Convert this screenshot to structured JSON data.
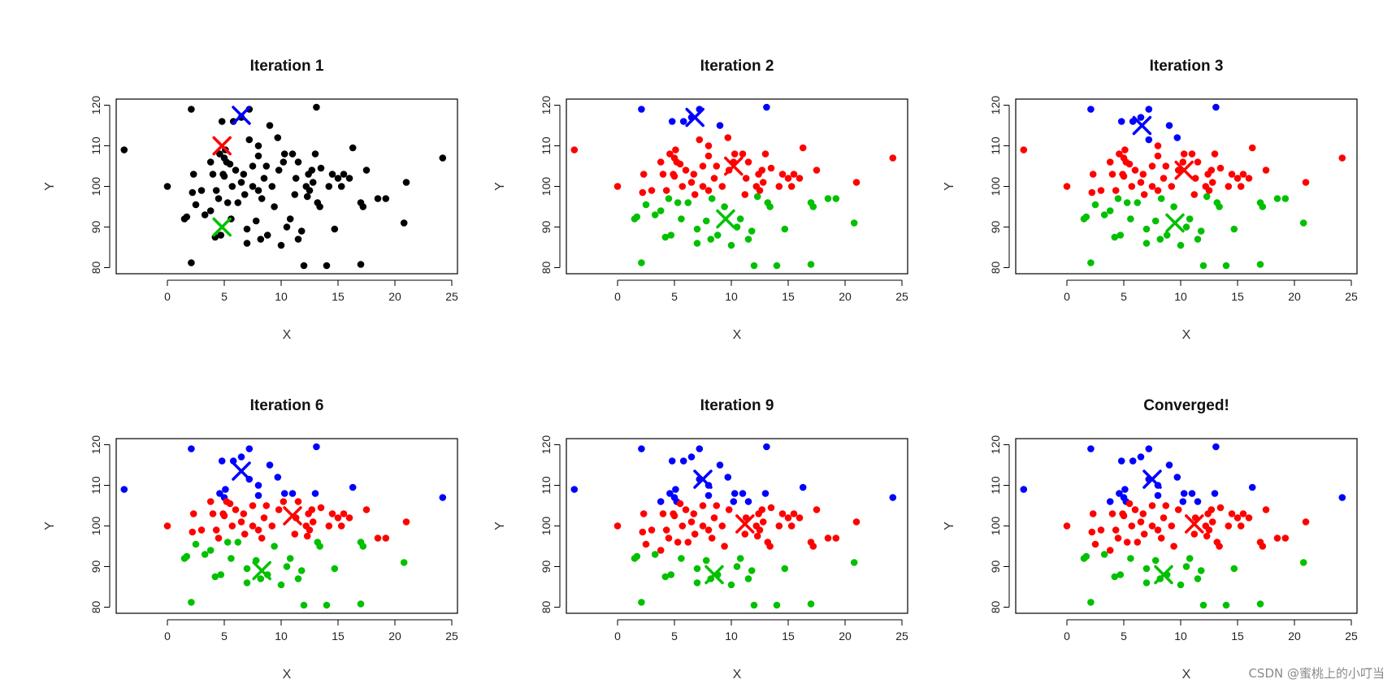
{
  "chart_data": [
    {
      "type": "scatter",
      "title": "Iteration 1",
      "xlabel": "X",
      "ylabel": "Y",
      "xlim": [
        -4.5,
        25.5
      ],
      "ylim": [
        78.5,
        121.5
      ],
      "xticks": [
        0,
        5,
        10,
        15,
        20,
        25
      ],
      "yticks": [
        80,
        90,
        100,
        110,
        120
      ],
      "grid": false,
      "point_color": "#000000",
      "centroids": [
        {
          "x": 6.5,
          "y": 117.5,
          "color": "#0000ff"
        },
        {
          "x": 4.8,
          "y": 110,
          "color": "#ff0000"
        },
        {
          "x": 4.8,
          "y": 90,
          "color": "#00c000"
        }
      ]
    },
    {
      "type": "scatter",
      "title": "Iteration 2",
      "xlabel": "X",
      "ylabel": "Y",
      "xlim": [
        -4.5,
        25.5
      ],
      "ylim": [
        78.5,
        121.5
      ],
      "xticks": [
        0,
        5,
        10,
        15,
        20,
        25
      ],
      "yticks": [
        80,
        90,
        100,
        110,
        120
      ],
      "grid": false,
      "split_lines": [
        114,
        98
      ],
      "centroids": [
        {
          "x": 6.8,
          "y": 117,
          "color": "#0000ff"
        },
        {
          "x": 10.2,
          "y": 105,
          "color": "#ff0000"
        },
        {
          "x": 9.5,
          "y": 92,
          "color": "#00c000"
        }
      ]
    },
    {
      "type": "scatter",
      "title": "Iteration 3",
      "xlabel": "X",
      "ylabel": "Y",
      "xlim": [
        -4.5,
        25.5
      ],
      "ylim": [
        78.5,
        121.5
      ],
      "xticks": [
        0,
        5,
        10,
        15,
        20,
        25
      ],
      "yticks": [
        80,
        90,
        100,
        110,
        120
      ],
      "grid": false,
      "split_lines": [
        111,
        98
      ],
      "centroids": [
        {
          "x": 6.6,
          "y": 115,
          "color": "#0000ff"
        },
        {
          "x": 10.3,
          "y": 104,
          "color": "#ff0000"
        },
        {
          "x": 9.5,
          "y": 91,
          "color": "#00c000"
        }
      ]
    },
    {
      "type": "scatter",
      "title": "Iteration 6",
      "xlabel": "X",
      "ylabel": "Y",
      "xlim": [
        -4.5,
        25.5
      ],
      "ylim": [
        78.5,
        121.5
      ],
      "xticks": [
        0,
        5,
        10,
        15,
        20,
        25
      ],
      "yticks": [
        80,
        90,
        100,
        110,
        120
      ],
      "grid": false,
      "split_lines": [
        107,
        97
      ],
      "centroids": [
        {
          "x": 6.5,
          "y": 113.5,
          "color": "#0000ff"
        },
        {
          "x": 11,
          "y": 102.5,
          "color": "#ff0000"
        },
        {
          "x": 8.3,
          "y": 89,
          "color": "#00c000"
        }
      ]
    },
    {
      "type": "scatter",
      "title": "Iteration 9",
      "xlabel": "X",
      "ylabel": "Y",
      "xlim": [
        -4.5,
        25.5
      ],
      "ylim": [
        78.5,
        121.5
      ],
      "xticks": [
        0,
        5,
        10,
        15,
        20,
        25
      ],
      "yticks": [
        80,
        90,
        100,
        110,
        120
      ],
      "grid": false,
      "split_lines": [
        106,
        94
      ],
      "centroids": [
        {
          "x": 7.5,
          "y": 111.5,
          "color": "#0000ff"
        },
        {
          "x": 11.2,
          "y": 100.5,
          "color": "#ff0000"
        },
        {
          "x": 8.5,
          "y": 88,
          "color": "#00c000"
        }
      ]
    },
    {
      "type": "scatter",
      "title": "Converged!",
      "xlabel": "X",
      "ylabel": "Y",
      "xlim": [
        -4.5,
        25.5
      ],
      "ylim": [
        78.5,
        121.5
      ],
      "xticks": [
        0,
        5,
        10,
        15,
        20,
        25
      ],
      "yticks": [
        80,
        90,
        100,
        110,
        120
      ],
      "grid": false,
      "split_lines": [
        106,
        94
      ],
      "centroids": [
        {
          "x": 7.5,
          "y": 111.5,
          "color": "#0000ff"
        },
        {
          "x": 11.2,
          "y": 100.5,
          "color": "#ff0000"
        },
        {
          "x": 8.5,
          "y": 88,
          "color": "#00c000"
        }
      ]
    }
  ],
  "points": [
    [
      -3.8,
      109
    ],
    [
      0,
      100
    ],
    [
      1.5,
      92
    ],
    [
      1.7,
      92.5
    ],
    [
      2.1,
      81.2
    ],
    [
      2.1,
      119
    ],
    [
      2.2,
      98.5
    ],
    [
      2.3,
      103
    ],
    [
      2.5,
      95.5
    ],
    [
      3,
      99
    ],
    [
      3.3,
      93
    ],
    [
      3.8,
      94
    ],
    [
      3.8,
      106
    ],
    [
      4,
      103
    ],
    [
      4.2,
      87.5
    ],
    [
      4.3,
      99
    ],
    [
      4.5,
      97
    ],
    [
      4.6,
      108
    ],
    [
      4.7,
      88
    ],
    [
      4.8,
      116
    ],
    [
      4.9,
      103
    ],
    [
      5,
      102.5
    ],
    [
      5,
      107
    ],
    [
      5.1,
      109
    ],
    [
      5.2,
      106
    ],
    [
      5.3,
      96
    ],
    [
      5.5,
      105.5
    ],
    [
      5.6,
      92
    ],
    [
      5.7,
      100
    ],
    [
      5.8,
      116
    ],
    [
      6,
      104
    ],
    [
      6.2,
      96
    ],
    [
      6.5,
      117
    ],
    [
      6.5,
      101
    ],
    [
      6.7,
      103
    ],
    [
      6.8,
      98
    ],
    [
      7,
      86
    ],
    [
      7,
      89.5
    ],
    [
      7.2,
      111.5
    ],
    [
      7.2,
      119
    ],
    [
      7.5,
      100
    ],
    [
      7.5,
      105
    ],
    [
      7.8,
      91.5
    ],
    [
      8,
      99
    ],
    [
      8,
      107.5
    ],
    [
      8,
      110
    ],
    [
      8.2,
      87
    ],
    [
      8.3,
      97
    ],
    [
      8.5,
      102
    ],
    [
      8.7,
      105
    ],
    [
      8.8,
      88
    ],
    [
      9,
      115
    ],
    [
      9.2,
      100
    ],
    [
      9.4,
      95
    ],
    [
      9.7,
      112
    ],
    [
      9.8,
      104
    ],
    [
      10,
      85.5
    ],
    [
      10.2,
      106
    ],
    [
      10.3,
      108
    ],
    [
      10.5,
      90
    ],
    [
      10.8,
      92
    ],
    [
      11,
      108
    ],
    [
      11.2,
      98
    ],
    [
      11.3,
      102
    ],
    [
      11.5,
      87
    ],
    [
      11.5,
      106
    ],
    [
      11.8,
      89
    ],
    [
      12,
      80.5
    ],
    [
      12.2,
      100
    ],
    [
      12.3,
      97.5
    ],
    [
      12.4,
      103
    ],
    [
      12.5,
      99
    ],
    [
      12.7,
      104
    ],
    [
      12.8,
      101
    ],
    [
      13,
      108
    ],
    [
      13.1,
      119.5
    ],
    [
      13.2,
      96
    ],
    [
      13.4,
      95
    ],
    [
      13.5,
      104.5
    ],
    [
      14,
      80.5
    ],
    [
      14.2,
      100
    ],
    [
      14.5,
      103
    ],
    [
      14.7,
      89.5
    ],
    [
      15,
      102
    ],
    [
      15.3,
      100
    ],
    [
      15.5,
      103
    ],
    [
      16,
      102
    ],
    [
      16.3,
      109.5
    ],
    [
      17,
      96
    ],
    [
      17.2,
      95
    ],
    [
      17,
      80.8
    ],
    [
      17.5,
      104
    ],
    [
      18.5,
      97
    ],
    [
      19.2,
      97
    ],
    [
      20.8,
      91
    ],
    [
      21,
      101
    ],
    [
      24.2,
      107
    ]
  ],
  "footer": {
    "watermark": "CSDN @蜜桃上的小叮当"
  }
}
